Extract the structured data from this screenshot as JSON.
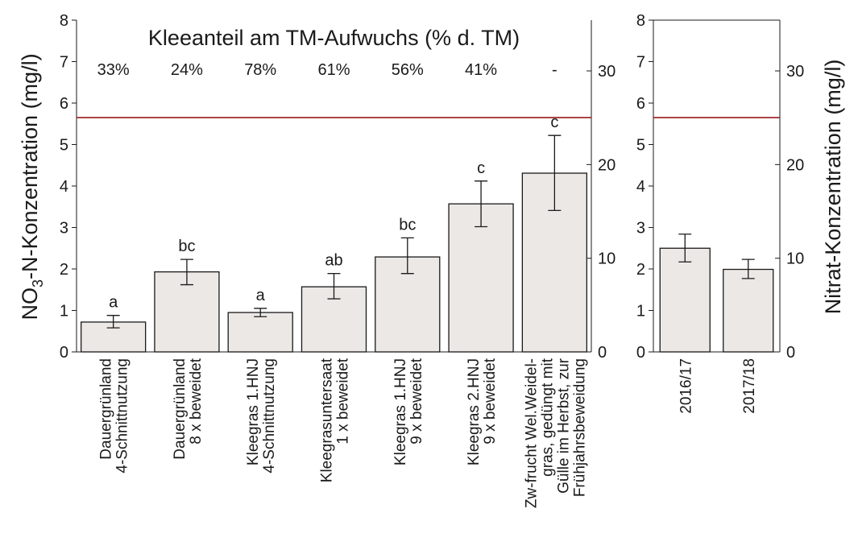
{
  "chart_data": [
    {
      "type": "bar",
      "title": "Kleeanteil am TM-Aufwuchs (% d. TM)",
      "ylabel": "NO3-N-Konzentration (mg/l)",
      "ylabel_parts": {
        "pre": "NO",
        "sub": "3",
        "post": "-N-Konzentration  (mg/l)"
      },
      "ylim": [
        0,
        8
      ],
      "yticks": [
        0,
        1,
        2,
        3,
        4,
        5,
        6,
        7,
        8
      ],
      "ylim_secondary": [
        0,
        35.42
      ],
      "yticks_secondary": [
        0,
        10,
        20,
        30
      ],
      "reference_line": 5.65,
      "reference_color": "#9e2a2b",
      "bar_color": "#ece8e6",
      "categories": [
        [
          "Dauergrünland",
          "4-Schnittnutzung"
        ],
        [
          "Dauergrünland",
          "8 x  beweidet"
        ],
        [
          "Kleegras  1.HNJ",
          "4-Schnittnutzung"
        ],
        [
          "Kleegrasuntersaat",
          "1 x  beweidet"
        ],
        [
          "Kleegras  1.HNJ",
          "9 x  beweidet"
        ],
        [
          "Kleegras  2.HNJ",
          "9 x  beweidet"
        ],
        [
          "Zw-frucht Wel.Weidel-",
          "gras, gedüngt  mit",
          "Gülle im Herbst,  zur",
          "Frühjahrsbeweidung"
        ]
      ],
      "values": [
        0.72,
        1.93,
        0.95,
        1.57,
        2.29,
        3.57,
        4.31
      ],
      "error_low": [
        0.58,
        1.62,
        0.85,
        1.28,
        1.89,
        3.02,
        3.41
      ],
      "error_high": [
        0.88,
        2.23,
        1.05,
        1.89,
        2.75,
        4.12,
        5.22
      ],
      "significance": [
        "a",
        "bc",
        "a",
        "ab",
        "bc",
        "c",
        "c"
      ],
      "clover_share": [
        "33%",
        "24%",
        "78%",
        "61%",
        "56%",
        "41%",
        "-"
      ]
    },
    {
      "type": "bar",
      "ylabel": "Nitrat-Konzentration  (mg/l)",
      "ylim": [
        0,
        8
      ],
      "yticks": [
        0,
        1,
        2,
        3,
        4,
        5,
        6,
        7,
        8
      ],
      "ylim_secondary": [
        0,
        35.42
      ],
      "yticks_secondary": [
        0,
        10,
        20,
        30
      ],
      "reference_line": 5.65,
      "reference_color": "#9e2a2b",
      "bar_color": "#ece8e6",
      "categories": [
        [
          "2016/17"
        ],
        [
          "2017/18"
        ]
      ],
      "values": [
        2.5,
        1.99
      ],
      "error_low": [
        2.17,
        1.77
      ],
      "error_high": [
        2.84,
        2.23
      ]
    }
  ]
}
